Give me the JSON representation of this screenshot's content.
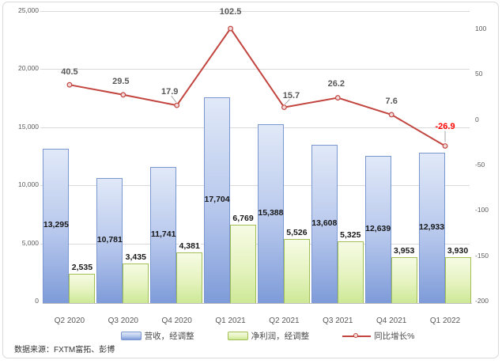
{
  "chart_data": {
    "type": "bar",
    "subtype": "bar-line-combo",
    "categories": [
      "Q2 2020",
      "Q3 2020",
      "Q4 2020",
      "Q1 2021",
      "Q2 2021",
      "Q3 2021",
      "Q4 2021",
      "Q1 2022"
    ],
    "series": [
      {
        "name": "营收，经调整",
        "type": "bar",
        "axis": "left",
        "values": [
          13295,
          10781,
          11741,
          17704,
          15388,
          13608,
          12639,
          12933
        ],
        "labels": [
          "13,295",
          "10,781",
          "11,741",
          "17,704",
          "15,388",
          "13,608",
          "12,639",
          "12,933"
        ]
      },
      {
        "name": "净利润，经调整",
        "type": "bar",
        "axis": "left",
        "values": [
          2535,
          3435,
          4381,
          6769,
          5526,
          5325,
          3953,
          3930
        ],
        "labels": [
          "2,535",
          "3,435",
          "4,381",
          "6,769",
          "5,526",
          "5,325",
          "3,953",
          "3,930"
        ]
      },
      {
        "name": "同比增长%",
        "type": "line",
        "axis": "right",
        "values": [
          40.5,
          29.5,
          17.9,
          102.5,
          15.7,
          26.2,
          7.6,
          -26.9
        ],
        "labels": [
          "40.5",
          "29.5",
          "17.9",
          "102.5",
          "15.7",
          "26.2",
          "7.6",
          "-26.9"
        ]
      }
    ],
    "left_axis": {
      "min": 0,
      "max": 25000,
      "tick_step": 5000,
      "ticks": [
        "0",
        "5,000",
        "10,000",
        "15,000",
        "20,000",
        "25,000"
      ],
      "tick_values": [
        0,
        5000,
        10000,
        15000,
        20000,
        25000
      ]
    },
    "right_axis": {
      "min": -200,
      "max": 120,
      "tick_step": 50,
      "ticks": [
        "-200",
        "-150",
        "-100",
        "-50",
        "0",
        "50",
        "100"
      ],
      "tick_values": [
        -200,
        -150,
        -100,
        -50,
        0,
        50,
        100
      ]
    },
    "grid": true,
    "legend_position": "bottom",
    "title": ""
  },
  "source_note": "数据来源：FXTM富拓、彭博",
  "colors": {
    "bar_revenue_top": "#e1e9f8",
    "bar_revenue_mid": "#b6c7ec",
    "bar_revenue_bottom": "#7e9bd9",
    "bar_revenue_border": "#7b97d1",
    "bar_profit_top": "#f6fbe4",
    "bar_profit_mid": "#e5f3bf",
    "bar_profit_bottom": "#cde896",
    "bar_profit_border": "#a2bf57",
    "line": "#c24540",
    "marker_fill": "#f2dcdb",
    "grid": "#d9d9d9",
    "axis_line": "#bfbfbf",
    "axis_text": "#595959",
    "bar_label": "#171717",
    "line_label": "#595959",
    "negative_label": "#ff0000",
    "leader": "#a6a6a6",
    "frame_border": "#d9d9d9"
  }
}
